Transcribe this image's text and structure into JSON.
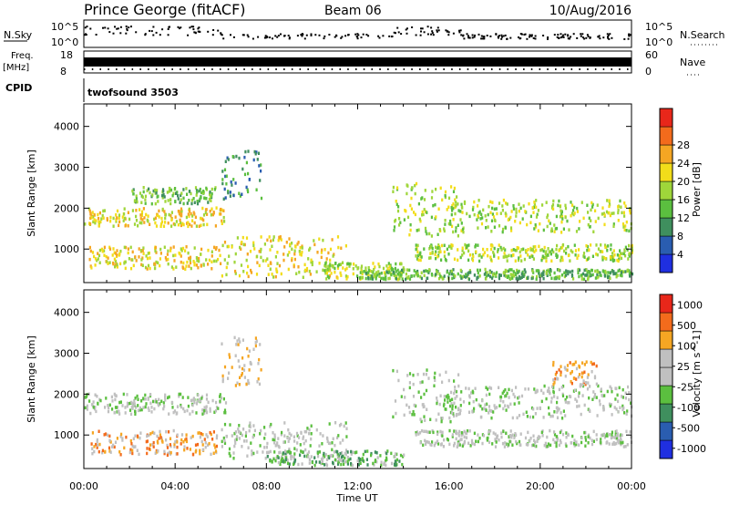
{
  "header": {
    "station": "Prince George (fitACF)",
    "beam": "Beam 06",
    "date": "10/Aug/2016"
  },
  "status_panels": {
    "nsky_label": "N.Sky",
    "nsky_ticks": [
      "10^5",
      "10^0"
    ],
    "nsearch_label": "N.Search",
    "freq_label": [
      "Freq.",
      "[MHz]"
    ],
    "freq_ticks": [
      "18",
      "8"
    ],
    "nave_label": "Nave",
    "nave_ticks": [
      "60",
      "0"
    ],
    "cpid_label": "CPID",
    "cpid_value": "twofsound 3503"
  },
  "colors": {
    "power": [
      "#1f2fe0",
      "#2a5db0",
      "#3f8f5e",
      "#5bbf3f",
      "#9fd63a",
      "#f2dd1a",
      "#f5a623",
      "#f36b1c",
      "#e8271a"
    ],
    "velocity": [
      "#1f2fe0",
      "#2a5db0",
      "#3f8f5e",
      "#5bbf3f",
      "#c0c0c0",
      "#c0c0c0",
      "#f5a623",
      "#f36b1c",
      "#e8271a"
    ]
  },
  "chart_data": [
    {
      "type": "heatmap",
      "name": "Power",
      "ylabel": "Slant Range [km]",
      "ylim": [
        180,
        4550
      ],
      "yticks": [
        "1000",
        "2000",
        "3000",
        "4000"
      ],
      "xlim": [
        "00:00",
        "24:00"
      ],
      "colorbar_label": "Power [dB]",
      "colorbar_ticks": [
        "4",
        "8",
        "12",
        "16",
        "20",
        "24",
        "28"
      ],
      "features": [
        {
          "t0": 0.0,
          "t1": 6.2,
          "r0": 1550,
          "r1": 2000,
          "level": 5
        },
        {
          "t0": 0.2,
          "t1": 6.0,
          "r0": 500,
          "r1": 1050,
          "level": 5
        },
        {
          "t0": 2.0,
          "t1": 5.8,
          "r0": 2100,
          "r1": 2500,
          "level": 3
        },
        {
          "t0": 6.0,
          "t1": 7.8,
          "r0": 2200,
          "r1": 3400,
          "level": 2
        },
        {
          "t0": 6.0,
          "t1": 11.5,
          "r0": 300,
          "r1": 1300,
          "level": 5
        },
        {
          "t0": 10.5,
          "t1": 14.0,
          "r0": 250,
          "r1": 650,
          "level": 4
        },
        {
          "t0": 13.5,
          "t1": 16.5,
          "r0": 1300,
          "r1": 2600,
          "level": 4
        },
        {
          "t0": 14.5,
          "t1": 24.0,
          "r0": 700,
          "r1": 1100,
          "level": 4
        },
        {
          "t0": 16.0,
          "t1": 24.0,
          "r0": 1400,
          "r1": 2200,
          "level": 4
        },
        {
          "t0": 12.0,
          "t1": 24.0,
          "r0": 250,
          "r1": 500,
          "level": 3
        }
      ]
    },
    {
      "type": "heatmap",
      "name": "Velocity",
      "ylabel": "Slant Range [km]",
      "ylim": [
        180,
        4550
      ],
      "yticks": [
        "1000",
        "2000",
        "3000",
        "4000"
      ],
      "xlabel": "Time UT",
      "xlim": [
        "00:00",
        "24:00"
      ],
      "xticks": [
        "00:00",
        "04:00",
        "08:00",
        "12:00",
        "16:00",
        "20:00",
        "00:00"
      ],
      "colorbar_label": "Velocity [m s^-1]",
      "colorbar_ticks": [
        "1000",
        "500",
        "100",
        "25",
        "-25",
        "-100",
        "-500",
        "-1000"
      ],
      "features": [
        {
          "t0": 0.0,
          "t1": 6.2,
          "r0": 1500,
          "r1": 2000,
          "level": 4
        },
        {
          "t0": 0.3,
          "t1": 5.8,
          "r0": 500,
          "r1": 1100,
          "level": 6
        },
        {
          "t0": 6.0,
          "t1": 7.8,
          "r0": 2200,
          "r1": 3400,
          "level": 5
        },
        {
          "t0": 6.0,
          "t1": 11.5,
          "r0": 400,
          "r1": 1300,
          "level": 4
        },
        {
          "t0": 8.0,
          "t1": 14.0,
          "r0": 250,
          "r1": 600,
          "level": 3
        },
        {
          "t0": 13.5,
          "t1": 16.5,
          "r0": 1300,
          "r1": 2600,
          "level": 4
        },
        {
          "t0": 14.5,
          "t1": 24.0,
          "r0": 700,
          "r1": 1100,
          "level": 4
        },
        {
          "t0": 16.0,
          "t1": 24.0,
          "r0": 1400,
          "r1": 2200,
          "level": 4
        },
        {
          "t0": 20.5,
          "t1": 22.5,
          "r0": 2200,
          "r1": 2800,
          "level": 6
        }
      ]
    }
  ]
}
